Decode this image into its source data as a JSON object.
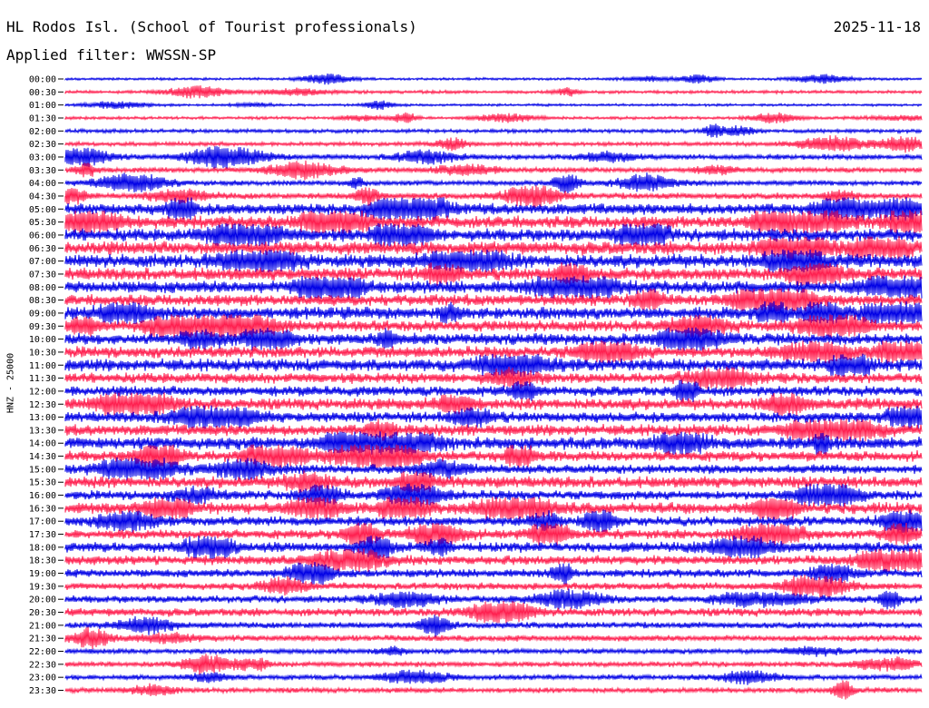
{
  "header": {
    "station": "HL Rodos Isl. (School of Tourist professionals)",
    "date": "2025-11-18",
    "filter": "Applied filter: WWSSN-SP"
  },
  "chart_data": {
    "type": "helicorder",
    "ylabel": "HNZ - 25000",
    "row_labels": [
      "00:00",
      "00:30",
      "01:00",
      "01:30",
      "02:00",
      "02:30",
      "03:00",
      "03:30",
      "04:00",
      "04:30",
      "05:00",
      "05:30",
      "06:00",
      "06:30",
      "07:00",
      "07:30",
      "08:00",
      "08:30",
      "09:00",
      "09:30",
      "10:00",
      "10:30",
      "11:00",
      "11:30",
      "12:00",
      "12:30",
      "13:00",
      "13:30",
      "14:00",
      "14:30",
      "15:00",
      "15:30",
      "16:00",
      "16:30",
      "17:00",
      "17:30",
      "18:00",
      "18:30",
      "19:00",
      "19:30",
      "20:00",
      "20:30",
      "21:00",
      "21:30",
      "22:00",
      "22:30",
      "23:00",
      "23:30"
    ],
    "trace_colors": [
      "#0000e6",
      "#ff1f4f"
    ],
    "amplitude_by_row": [
      0.12,
      0.15,
      0.12,
      0.14,
      0.18,
      0.2,
      0.25,
      0.25,
      0.25,
      0.3,
      0.55,
      0.6,
      0.6,
      0.65,
      0.65,
      0.6,
      0.6,
      0.55,
      0.6,
      0.55,
      0.55,
      0.55,
      0.6,
      0.5,
      0.5,
      0.55,
      0.5,
      0.55,
      0.6,
      0.5,
      0.45,
      0.55,
      0.45,
      0.55,
      0.45,
      0.45,
      0.5,
      0.45,
      0.4,
      0.35,
      0.35,
      0.4,
      0.3,
      0.3,
      0.25,
      0.25,
      0.25,
      0.25
    ]
  }
}
